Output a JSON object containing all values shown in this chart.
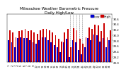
{
  "title": "Milwaukee Weather Barometric Pressure",
  "subtitle": "Daily High/Low",
  "ylim": [
    29.0,
    30.75
  ],
  "yticks": [
    29.0,
    29.2,
    29.4,
    29.6,
    29.8,
    30.0,
    30.2,
    30.4,
    30.6
  ],
  "background_color": "#ffffff",
  "highs": [
    30.18,
    30.1,
    29.92,
    30.15,
    30.18,
    30.22,
    30.15,
    30.18,
    30.1,
    30.05,
    30.18,
    30.22,
    30.22,
    30.18,
    30.1,
    30.0,
    29.85,
    29.75,
    30.1,
    30.22,
    29.55,
    30.25,
    30.18,
    29.85,
    29.68,
    29.92,
    30.28,
    30.22,
    30.38,
    30.35,
    30.15,
    30.42,
    29.92,
    30.18
  ],
  "lows": [
    29.8,
    29.72,
    29.55,
    29.88,
    29.92,
    29.88,
    29.88,
    29.8,
    29.72,
    29.68,
    29.8,
    29.92,
    29.92,
    29.8,
    29.72,
    29.62,
    29.55,
    29.38,
    29.72,
    29.85,
    29.18,
    29.8,
    29.72,
    29.45,
    29.3,
    29.55,
    29.88,
    29.82,
    30.02,
    29.98,
    29.75,
    29.88,
    29.55,
    29.82
  ],
  "xlabels": [
    "1",
    "2",
    "3",
    "4",
    "5",
    "6",
    "7",
    "8",
    "9",
    "10",
    "11",
    "12",
    "13",
    "14",
    "15",
    "16",
    "17",
    "18",
    "19",
    "20",
    "21",
    "22",
    "23",
    "24",
    "25",
    "26",
    "27",
    "28",
    "29",
    "30",
    "31",
    "32",
    "33",
    "34"
  ],
  "dashed_indices": [
    20,
    21,
    22,
    23,
    24
  ],
  "high_color": "#cc0000",
  "low_color": "#0000cc",
  "title_fontsize": 4.0,
  "axis_fontsize": 2.8,
  "legend_fontsize": 3.2,
  "bar_width": 0.42
}
